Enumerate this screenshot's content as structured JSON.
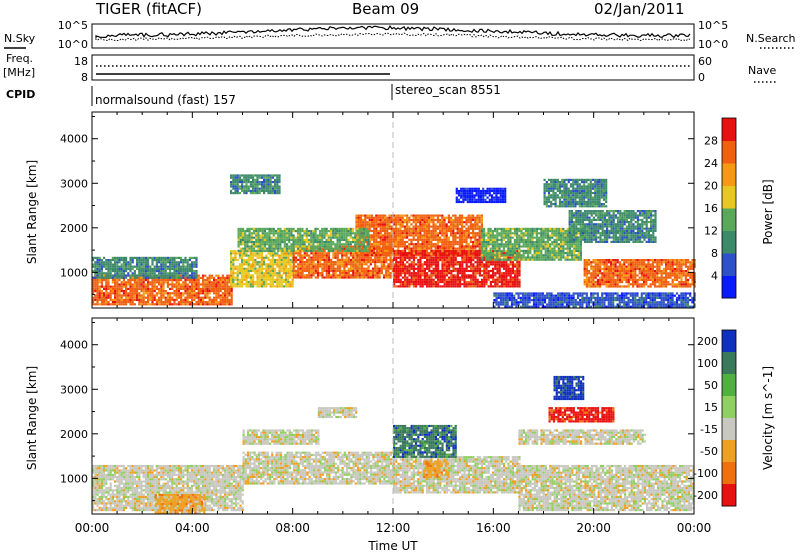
{
  "header": {
    "station": "TIGER (fitACF)",
    "beam": "Beam 09",
    "date": "02/Jan/2011"
  },
  "top_panels": {
    "nsky_label": "N.Sky",
    "nsearch_label": "N.Search",
    "freq_label_1": "Freq.",
    "freq_label_2": "[MHz]",
    "nave_label": "Nave",
    "cpid_label": "CPID",
    "noise_ticks_left": [
      "10^5",
      "10^0"
    ],
    "noise_ticks_right": [
      "10^5",
      "10^0"
    ],
    "freq_ticks": [
      "18",
      "8"
    ],
    "nave_ticks": [
      "60",
      "0"
    ],
    "cpid_segments": [
      {
        "label": "normalsound (fast) 157",
        "start_hour": 0
      },
      {
        "label": "stereo_scan 8551",
        "start_hour": 12
      }
    ]
  },
  "chart_data": [
    {
      "type": "heatmap",
      "parameter": "Power",
      "ylabel": "Slant Range [km]",
      "xlabel": "",
      "colorbar_label": "Power [dB]",
      "ylim": [
        200,
        4600
      ],
      "xlim_hours": [
        0,
        24
      ],
      "y_ticks": [
        1000,
        2000,
        3000,
        4000
      ],
      "colorbar_ticks": [
        "4",
        "8",
        "12",
        "16",
        "20",
        "24",
        "28"
      ],
      "colorbar_colors": [
        "#0a1aff",
        "#2e50c8",
        "#3c8a6a",
        "#5aa85a",
        "#e8c820",
        "#f59a10",
        "#f06010",
        "#e81010"
      ],
      "regions": [
        {
          "t0": 0.0,
          "t1": 5.6,
          "r0": 300,
          "r1": 950,
          "level": 6
        },
        {
          "t0": 0.0,
          "t1": 4.2,
          "r0": 900,
          "r1": 1350,
          "level": 2
        },
        {
          "t0": 5.5,
          "t1": 8.0,
          "r0": 700,
          "r1": 1500,
          "level": 4
        },
        {
          "t0": 8.0,
          "t1": 12.0,
          "r0": 900,
          "r1": 1600,
          "level": 6
        },
        {
          "t0": 10.5,
          "t1": 15.5,
          "r0": 1400,
          "r1": 2300,
          "level": 6
        },
        {
          "t0": 12.0,
          "t1": 17.0,
          "r0": 700,
          "r1": 1500,
          "level": 7
        },
        {
          "t0": 15.5,
          "t1": 19.5,
          "r0": 1300,
          "r1": 2000,
          "level": 3
        },
        {
          "t0": 5.8,
          "t1": 11.0,
          "r0": 1500,
          "r1": 2000,
          "level": 3
        },
        {
          "t0": 19.6,
          "t1": 24.0,
          "r0": 700,
          "r1": 1300,
          "level": 6
        },
        {
          "t0": 19.0,
          "t1": 22.5,
          "r0": 1700,
          "r1": 2400,
          "level": 2
        },
        {
          "t0": 16.0,
          "t1": 24.0,
          "r0": 250,
          "r1": 550,
          "level": 1
        },
        {
          "t0": 5.5,
          "t1": 7.5,
          "r0": 2800,
          "r1": 3200,
          "level": 2
        },
        {
          "t0": 18.0,
          "t1": 20.5,
          "r0": 2500,
          "r1": 3100,
          "level": 2
        },
        {
          "t0": 14.5,
          "t1": 16.5,
          "r0": 2600,
          "r1": 2900,
          "level": 0
        }
      ]
    },
    {
      "type": "heatmap",
      "parameter": "Velocity",
      "ylabel": "Slant Range [km]",
      "xlabel": "Time UT",
      "colorbar_label": "Velocity [m s^-1]",
      "ylim": [
        200,
        4600
      ],
      "xlim_hours": [
        0,
        24
      ],
      "y_ticks": [
        1000,
        2000,
        3000,
        4000
      ],
      "x_ticks": [
        "00:00",
        "04:00",
        "08:00",
        "12:00",
        "16:00",
        "20:00",
        "00:00"
      ],
      "colorbar_ticks": [
        "200",
        "100",
        "50",
        "15",
        "-15",
        "-50",
        "-100",
        "-200"
      ],
      "colorbar_colors": [
        "#1030c0",
        "#3a7a5a",
        "#50b040",
        "#90d060",
        "#c8c8c0",
        "#f0a020",
        "#f07010",
        "#e81010"
      ],
      "regions": [
        {
          "t0": 0.0,
          "t1": 6.0,
          "r0": 300,
          "r1": 1300,
          "level": 4
        },
        {
          "t0": 6.0,
          "t1": 12.0,
          "r0": 900,
          "r1": 1600,
          "level": 4
        },
        {
          "t0": 12.0,
          "t1": 17.0,
          "r0": 700,
          "r1": 1500,
          "level": 4
        },
        {
          "t0": 17.0,
          "t1": 24.0,
          "r0": 300,
          "r1": 1300,
          "level": 4
        },
        {
          "t0": 12.0,
          "t1": 14.5,
          "r0": 1500,
          "r1": 2200,
          "level": 1
        },
        {
          "t0": 18.2,
          "t1": 20.8,
          "r0": 2300,
          "r1": 2600,
          "level": 7
        },
        {
          "t0": 18.4,
          "t1": 19.6,
          "r0": 2800,
          "r1": 3300,
          "level": 0
        },
        {
          "t0": 2.5,
          "t1": 4.5,
          "r0": 250,
          "r1": 650,
          "level": 5
        },
        {
          "t0": 13.2,
          "t1": 14.2,
          "r0": 1050,
          "r1": 1400,
          "level": 5
        },
        {
          "t0": 6.0,
          "t1": 9.0,
          "r0": 1800,
          "r1": 2100,
          "level": 4
        },
        {
          "t0": 17.0,
          "t1": 22.0,
          "r0": 1800,
          "r1": 2100,
          "level": 4
        },
        {
          "t0": 9.0,
          "t1": 10.5,
          "r0": 2400,
          "r1": 2600,
          "level": 4
        }
      ]
    }
  ]
}
